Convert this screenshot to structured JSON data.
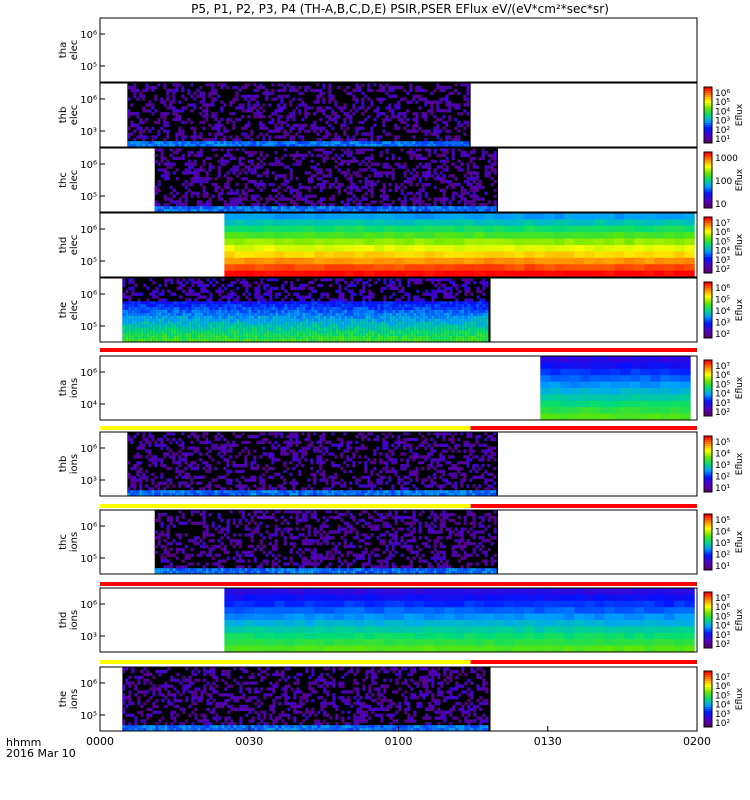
{
  "chart_data": {
    "type": "heatmap",
    "title": "P5, P1, P2, P3, P4 (TH-A,B,C,D,E) PSIR,PSER EFlux eV/(eV*cm²*sec*sr)",
    "time_axis": {
      "ticks": [
        "0000",
        "0030",
        "0100",
        "0130",
        "0200"
      ],
      "range_minutes": [
        0,
        120
      ],
      "units_label": "hhmm",
      "date_label": "2016 Mar 10"
    },
    "colorbar_label": "Eflux",
    "panels": [
      {
        "id": "tha-elec",
        "ylabel": [
          "tha",
          "elec"
        ],
        "y_ticks": [
          "10⁵",
          "10⁶"
        ],
        "start_min": null,
        "end_min": null,
        "style": "none",
        "colorbar": false
      },
      {
        "id": "thb-elec",
        "ylabel": [
          "thb",
          "elec"
        ],
        "y_ticks": [
          "10³",
          "10⁶"
        ],
        "start_min": 5.5,
        "end_min": 74.5,
        "style": "noise",
        "colorbar": true,
        "colorbar_ticks": [
          "10⁶",
          "10⁵",
          "10⁴",
          "10³",
          "10²",
          "10¹"
        ]
      },
      {
        "id": "thc-elec",
        "ylabel": [
          "thc",
          "elec"
        ],
        "y_ticks": [
          "10⁵",
          "10⁶"
        ],
        "start_min": 11,
        "end_min": 80,
        "style": "noise",
        "colorbar": true,
        "colorbar_ticks": [
          "1000",
          "100",
          "10"
        ]
      },
      {
        "id": "thd-elec",
        "ylabel": [
          "thd",
          "elec"
        ],
        "y_ticks": [
          "10⁵",
          "10⁶"
        ],
        "start_min": 25,
        "end_min": 120,
        "style": "hot",
        "colorbar": true,
        "colorbar_ticks": [
          "10⁷",
          "10⁶",
          "10⁵",
          "10⁴",
          "10³",
          "10²"
        ]
      },
      {
        "id": "the-elec",
        "ylabel": [
          "the",
          "elec"
        ],
        "y_ticks": [
          "10⁵",
          "10⁶"
        ],
        "start_min": 4.5,
        "end_min": 78.5,
        "style": "mixed",
        "colorbar": true,
        "colorbar_ticks": [
          "10⁶",
          "10⁵",
          "10⁴",
          "10³",
          "10²"
        ]
      },
      {
        "id": "tha-ions",
        "ylabel": [
          "tha",
          "ions"
        ],
        "y_ticks": [
          "10⁴",
          "10⁶"
        ],
        "start_min": 88.5,
        "end_min": 120,
        "style": "cool",
        "colorbar": true,
        "colorbar_ticks": [
          "10⁷",
          "10⁶",
          "10⁵",
          "10⁴",
          "10³",
          "10²"
        ]
      },
      {
        "id": "thb-ions",
        "ylabel": [
          "thb",
          "ions"
        ],
        "y_ticks": [
          "10³",
          "10⁶"
        ],
        "start_min": 5.5,
        "end_min": 80,
        "style": "noise",
        "colorbar": true,
        "colorbar_ticks": [
          "10⁵",
          "10⁴",
          "10³",
          "10²",
          "10¹"
        ]
      },
      {
        "id": "thc-ions",
        "ylabel": [
          "thc",
          "ions"
        ],
        "y_ticks": [
          "10⁵",
          "10⁶"
        ],
        "start_min": 11,
        "end_min": 80,
        "style": "noise",
        "colorbar": true,
        "colorbar_ticks": [
          "10⁵",
          "10⁴",
          "10³",
          "10²",
          "10¹"
        ]
      },
      {
        "id": "thd-ions",
        "ylabel": [
          "thd",
          "ions"
        ],
        "y_ticks": [
          "10³",
          "10⁶"
        ],
        "start_min": 25,
        "end_min": 120,
        "style": "cool",
        "colorbar": true,
        "colorbar_ticks": [
          "10⁷",
          "10⁶",
          "10⁵",
          "10⁴",
          "10³",
          "10²"
        ]
      },
      {
        "id": "the-ions",
        "ylabel": [
          "the",
          "ions"
        ],
        "y_ticks": [
          "10⁵",
          "10⁶"
        ],
        "start_min": 4.5,
        "end_min": 78.5,
        "style": "noise",
        "colorbar": true,
        "colorbar_ticks": [
          "10⁷",
          "10⁶",
          "10⁵",
          "10⁴",
          "10³",
          "10²"
        ]
      }
    ],
    "mode_bars": [
      {
        "after_panel": 4,
        "segments": [
          {
            "from_min": 0,
            "to_min": 120,
            "color": "#ff0000"
          }
        ]
      },
      {
        "after_panel": 5,
        "segments": [
          {
            "from_min": 0,
            "to_min": 74.5,
            "color": "#ffff00"
          },
          {
            "from_min": 74.5,
            "to_min": 120,
            "color": "#ff0000"
          }
        ]
      },
      {
        "after_panel": 6,
        "segments": [
          {
            "from_min": 0,
            "to_min": 74.5,
            "color": "#ffff00"
          },
          {
            "from_min": 74.5,
            "to_min": 120,
            "color": "#ff0000"
          }
        ]
      },
      {
        "after_panel": 7,
        "segments": [
          {
            "from_min": 0,
            "to_min": 120,
            "color": "#ff0000"
          }
        ]
      },
      {
        "after_panel": 8,
        "segments": [
          {
            "from_min": 0,
            "to_min": 74.5,
            "color": "#ffff00"
          },
          {
            "from_min": 74.5,
            "to_min": 120,
            "color": "#ff0000"
          }
        ]
      }
    ]
  }
}
